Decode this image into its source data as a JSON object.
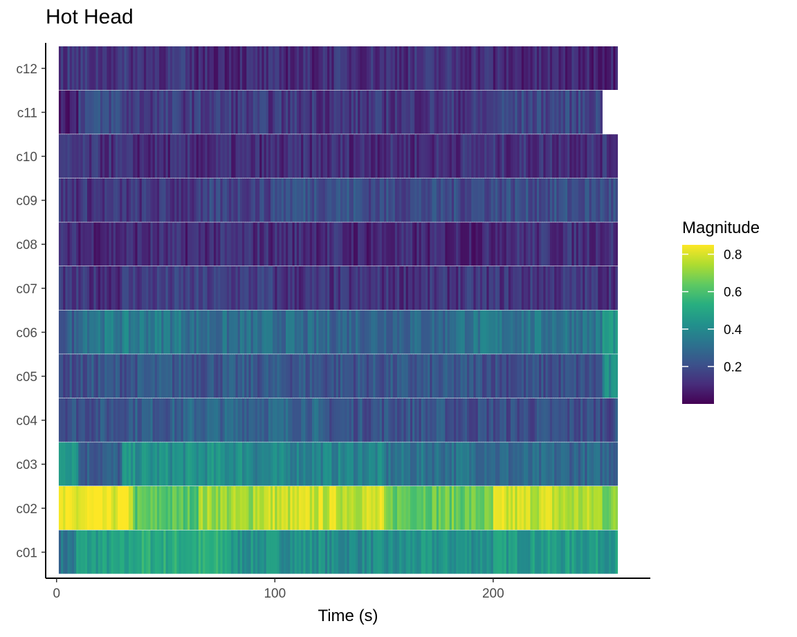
{
  "chart_data": {
    "type": "heatmap",
    "title": "Hot Head",
    "xlabel": "Time (s)",
    "ylabel": "",
    "x_range": [
      1,
      257
    ],
    "xlim": [
      -5,
      272
    ],
    "x_ticks": [
      0,
      100,
      200
    ],
    "x_tick_labels": [
      "0",
      "100",
      "200"
    ],
    "rows": [
      "c01",
      "c02",
      "c03",
      "c04",
      "c05",
      "c06",
      "c07",
      "c08",
      "c09",
      "c10",
      "c11",
      "c12"
    ],
    "row_end_x": [
      257,
      257,
      257,
      257,
      257,
      257,
      257,
      257,
      257,
      257,
      250,
      257
    ],
    "row_mean_magnitude": [
      0.45,
      0.74,
      0.38,
      0.22,
      0.22,
      0.3,
      0.13,
      0.1,
      0.17,
      0.11,
      0.13,
      0.11
    ],
    "segments": {
      "c01": [
        [
          1,
          9,
          0.33
        ],
        [
          9,
          34,
          0.47
        ],
        [
          34,
          80,
          0.52
        ],
        [
          80,
          122,
          0.43
        ],
        [
          122,
          160,
          0.4
        ],
        [
          160,
          200,
          0.43
        ],
        [
          200,
          257,
          0.46
        ]
      ],
      "c02": [
        [
          1,
          10,
          0.8
        ],
        [
          10,
          35,
          0.82
        ],
        [
          35,
          65,
          0.62
        ],
        [
          65,
          90,
          0.72
        ],
        [
          90,
          110,
          0.77
        ],
        [
          110,
          150,
          0.78
        ],
        [
          150,
          200,
          0.65
        ],
        [
          200,
          230,
          0.78
        ],
        [
          230,
          250,
          0.74
        ],
        [
          250,
          257,
          0.68
        ]
      ],
      "c03": [
        [
          1,
          10,
          0.48
        ],
        [
          10,
          30,
          0.25
        ],
        [
          30,
          90,
          0.42
        ],
        [
          90,
          150,
          0.38
        ],
        [
          150,
          200,
          0.32
        ],
        [
          200,
          257,
          0.28
        ]
      ],
      "c04": [
        [
          1,
          30,
          0.22
        ],
        [
          30,
          60,
          0.25
        ],
        [
          60,
          120,
          0.28
        ],
        [
          120,
          180,
          0.22
        ],
        [
          180,
          257,
          0.2
        ]
      ],
      "c05": [
        [
          1,
          15,
          0.2
        ],
        [
          15,
          35,
          0.22
        ],
        [
          35,
          120,
          0.23
        ],
        [
          120,
          200,
          0.22
        ],
        [
          200,
          250,
          0.2
        ],
        [
          250,
          257,
          0.4
        ]
      ],
      "c06": [
        [
          1,
          10,
          0.25
        ],
        [
          10,
          60,
          0.35
        ],
        [
          60,
          110,
          0.3
        ],
        [
          110,
          180,
          0.28
        ],
        [
          180,
          250,
          0.33
        ],
        [
          250,
          257,
          0.45
        ]
      ],
      "c07": [
        [
          1,
          30,
          0.12
        ],
        [
          30,
          100,
          0.15
        ],
        [
          100,
          180,
          0.12
        ],
        [
          180,
          257,
          0.13
        ]
      ],
      "c08": [
        [
          1,
          60,
          0.1
        ],
        [
          60,
          130,
          0.11
        ],
        [
          130,
          200,
          0.09
        ],
        [
          200,
          257,
          0.12
        ]
      ],
      "c09": [
        [
          1,
          70,
          0.13
        ],
        [
          70,
          100,
          0.17
        ],
        [
          100,
          140,
          0.22
        ],
        [
          140,
          190,
          0.19
        ],
        [
          190,
          257,
          0.2
        ]
      ],
      "c10": [
        [
          1,
          30,
          0.12
        ],
        [
          30,
          110,
          0.1
        ],
        [
          110,
          180,
          0.11
        ],
        [
          180,
          257,
          0.12
        ]
      ],
      "c11": [
        [
          1,
          10,
          0.08
        ],
        [
          10,
          30,
          0.2
        ],
        [
          30,
          80,
          0.15
        ],
        [
          80,
          120,
          0.14
        ],
        [
          120,
          200,
          0.13
        ],
        [
          200,
          250,
          0.18
        ]
      ],
      "c12": [
        [
          1,
          60,
          0.13
        ],
        [
          60,
          120,
          0.1
        ],
        [
          120,
          200,
          0.12
        ],
        [
          200,
          257,
          0.09
        ]
      ]
    },
    "colorscale": "viridis",
    "color_range": [
      0.0,
      0.85
    ],
    "legend": {
      "title": "Magnitude",
      "ticks": [
        0.8,
        0.6,
        0.4,
        0.2
      ],
      "tick_labels": [
        "0.8",
        "0.6",
        "0.4",
        "0.2"
      ],
      "position": "right"
    }
  }
}
